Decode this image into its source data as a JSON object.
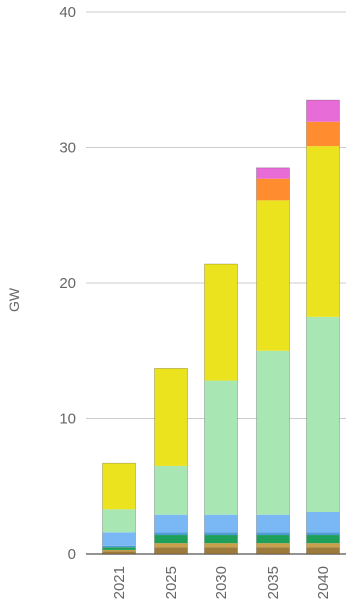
{
  "chart_data": {
    "type": "bar",
    "stacked": true,
    "categories": [
      "2021",
      "2025",
      "2030",
      "2035",
      "2040"
    ],
    "ylabel": "GW",
    "ylim": [
      0,
      40
    ],
    "yticks": [
      0,
      10,
      20,
      30,
      40
    ],
    "grid": true,
    "series": [
      {
        "color": "#9c7a3c",
        "values": [
          0.2,
          0.5,
          0.5,
          0.5,
          0.5
        ]
      },
      {
        "color": "#c8a04a",
        "values": [
          0.1,
          0.3,
          0.3,
          0.3,
          0.3
        ]
      },
      {
        "color": "#1fa05a",
        "values": [
          0.2,
          0.6,
          0.6,
          0.6,
          0.6
        ]
      },
      {
        "color": "#4e9bd6",
        "values": [
          0.1,
          0.2,
          0.2,
          0.2,
          0.2
        ]
      },
      {
        "color": "#7ab8f5",
        "values": [
          1.0,
          1.3,
          1.3,
          1.3,
          1.5
        ]
      },
      {
        "color": "#a8e6b4",
        "values": [
          1.7,
          3.6,
          9.9,
          12.1,
          14.4
        ]
      },
      {
        "color": "#ebe31e",
        "values": [
          3.4,
          7.2,
          8.6,
          11.1,
          12.6
        ]
      },
      {
        "color": "#ff8c2e",
        "values": [
          0,
          0,
          0,
          1.6,
          1.8
        ]
      },
      {
        "color": "#e86cd8",
        "values": [
          0,
          0,
          0,
          0.8,
          1.6
        ]
      }
    ]
  }
}
